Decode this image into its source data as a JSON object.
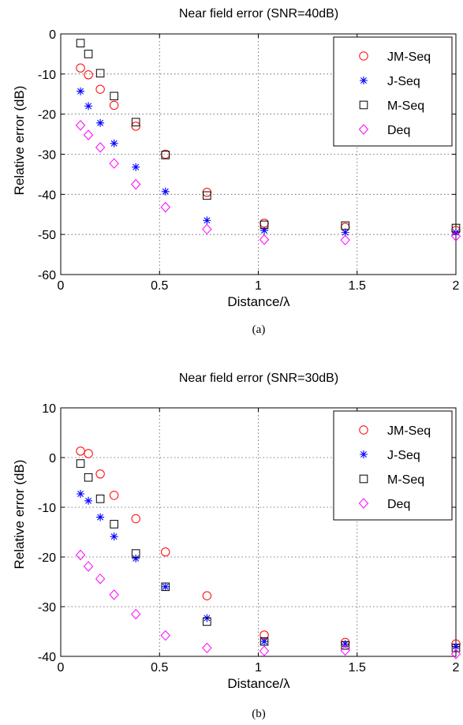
{
  "chart_data": [
    {
      "type": "scatter",
      "title": "Near field error (SNR=40dB)",
      "xlabel": "Distance/λ",
      "ylabel": "Relative error (dB)",
      "caption": "(a)",
      "xlim": [
        0,
        2
      ],
      "ylim": [
        -60,
        0
      ],
      "xticks": [
        "0",
        "0.5",
        "1",
        "1.5",
        "2"
      ],
      "xtick_values": [
        0,
        0.5,
        1,
        1.5,
        2
      ],
      "yticks": [
        "0",
        "-10",
        "-20",
        "-30",
        "-40",
        "-50",
        "-60"
      ],
      "ytick_values": [
        0,
        -10,
        -20,
        -30,
        -40,
        -50,
        -60
      ],
      "grid": true,
      "legend_position": "top-right",
      "x": [
        0.1,
        0.14,
        0.2,
        0.27,
        0.38,
        0.53,
        0.74,
        1.03,
        1.44,
        2.0
      ],
      "series": [
        {
          "name": "JM-Seq",
          "marker": "circle",
          "color": "#ff0000",
          "values": [
            -8.5,
            -10.2,
            -13.8,
            -17.8,
            -23.0,
            -30.0,
            -39.5,
            -47.2,
            -48.2,
            -49.0
          ]
        },
        {
          "name": "J-Seq",
          "marker": "star",
          "color": "#0000ff",
          "values": [
            -14.3,
            -18.0,
            -22.2,
            -27.3,
            -33.2,
            -39.3,
            -46.5,
            -49.0,
            -49.5,
            -49.5
          ]
        },
        {
          "name": "M-Seq",
          "marker": "square",
          "color": "#000000",
          "values": [
            -2.3,
            -5.0,
            -9.8,
            -15.5,
            -22.0,
            -30.2,
            -40.3,
            -47.6,
            -47.8,
            -48.4
          ]
        },
        {
          "name": "Deq",
          "marker": "diamond",
          "color": "#ff00ff",
          "values": [
            -22.8,
            -25.2,
            -28.3,
            -32.3,
            -37.5,
            -43.2,
            -48.7,
            -51.3,
            -51.4,
            -50.4
          ]
        }
      ]
    },
    {
      "type": "scatter",
      "title": "Near field error (SNR=30dB)",
      "xlabel": "Distance/λ",
      "ylabel": "Relative error (dB)",
      "caption": "(b)",
      "xlim": [
        0,
        2
      ],
      "ylim": [
        -40,
        10
      ],
      "xticks": [
        "0",
        "0.5",
        "1",
        "1.5",
        "2"
      ],
      "xtick_values": [
        0,
        0.5,
        1,
        1.5,
        2
      ],
      "yticks": [
        "10",
        "0",
        "-10",
        "-20",
        "-30",
        "-40"
      ],
      "ytick_values": [
        10,
        0,
        -10,
        -20,
        -30,
        -40
      ],
      "grid": true,
      "legend_position": "top-right",
      "x": [
        0.1,
        0.14,
        0.2,
        0.27,
        0.38,
        0.53,
        0.74,
        1.03,
        1.44,
        2.0
      ],
      "series": [
        {
          "name": "JM-Seq",
          "marker": "circle",
          "color": "#ff0000",
          "values": [
            1.3,
            0.8,
            -3.3,
            -7.6,
            -12.3,
            -19.0,
            -27.8,
            -35.7,
            -37.2,
            -37.5
          ]
        },
        {
          "name": "J-Seq",
          "marker": "star",
          "color": "#0000ff",
          "values": [
            -7.3,
            -8.7,
            -12.0,
            -15.9,
            -20.3,
            -26.0,
            -32.3,
            -37.0,
            -37.5,
            -38.0
          ]
        },
        {
          "name": "M-Seq",
          "marker": "square",
          "color": "#000000",
          "values": [
            -1.2,
            -4.0,
            -8.3,
            -13.4,
            -19.3,
            -26.0,
            -33.0,
            -37.0,
            -37.8,
            -38.3
          ]
        },
        {
          "name": "Deq",
          "marker": "diamond",
          "color": "#ff00ff",
          "values": [
            -19.6,
            -21.9,
            -24.4,
            -27.6,
            -31.5,
            -35.8,
            -38.3,
            -38.9,
            -38.8,
            -39.5
          ]
        }
      ]
    }
  ]
}
